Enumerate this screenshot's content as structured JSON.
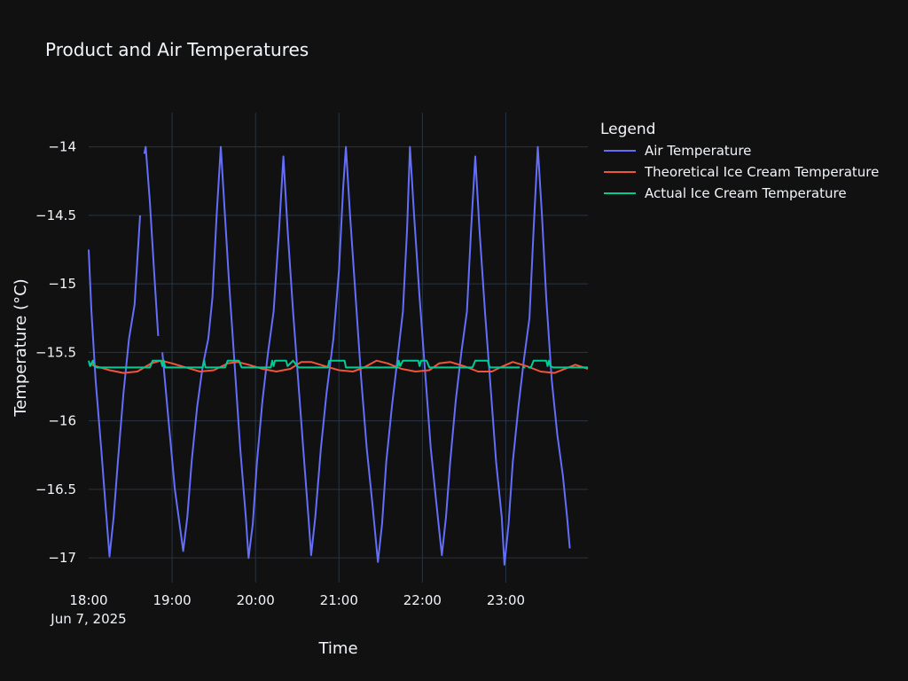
{
  "chart_data": {
    "type": "line",
    "title": "Product and Air Temperatures",
    "xlabel": "Time",
    "ylabel": "Temperature (°C)",
    "legend_title": "Legend",
    "legend_position": "top-right, outside plot",
    "grid": true,
    "date_label": "Jun 7, 2025",
    "xlim": [
      "2025-06-07 18:00",
      "2025-06-07 23:59"
    ],
    "ylim": [
      -17.18,
      -13.75
    ],
    "x_ticks": [
      {
        "value": "2025-06-07 18:00",
        "label": "18:00"
      },
      {
        "value": "2025-06-07 19:00",
        "label": "19:00"
      },
      {
        "value": "2025-06-07 20:00",
        "label": "20:00"
      },
      {
        "value": "2025-06-07 21:00",
        "label": "21:00"
      },
      {
        "value": "2025-06-07 22:00",
        "label": "22:00"
      },
      {
        "value": "2025-06-07 23:00",
        "label": "23:00"
      }
    ],
    "y_ticks": [
      {
        "value": -14,
        "label": "−14"
      },
      {
        "value": -14.5,
        "label": "−14.5"
      },
      {
        "value": -15,
        "label": "−15"
      },
      {
        "value": -15.5,
        "label": "−15.5"
      },
      {
        "value": -16,
        "label": "−16"
      },
      {
        "value": -16.5,
        "label": "−16.5"
      },
      {
        "value": -17,
        "label": "−17"
      }
    ],
    "series": [
      {
        "name": "Air Temperature",
        "color": "#636efa",
        "points": [
          [
            "2025-06-07 18:00",
            -14.75
          ],
          [
            "2025-06-07 18:02",
            -15.2
          ],
          [
            "2025-06-07 18:05",
            -15.7
          ],
          [
            "2025-06-07 18:09",
            -16.2
          ],
          [
            "2025-06-07 18:12",
            -16.6
          ],
          [
            "2025-06-07 18:15",
            -16.99
          ],
          [
            "2025-06-07 18:18",
            -16.7
          ],
          [
            "2025-06-07 18:21",
            -16.3
          ],
          [
            "2025-06-07 18:25",
            -15.8
          ],
          [
            "2025-06-07 18:29",
            -15.4
          ],
          [
            "2025-06-07 18:33",
            -15.15
          ],
          [
            "2025-06-07 18:37",
            -14.5
          ],
          null,
          [
            "2025-06-07 18:40",
            -14.05
          ],
          [
            "2025-06-07 18:41",
            -14.0
          ],
          [
            "2025-06-07 18:44",
            -14.4
          ],
          [
            "2025-06-07 18:47",
            -14.9
          ],
          [
            "2025-06-07 18:50",
            -15.38
          ],
          null,
          [
            "2025-06-07 18:53",
            -15.5
          ],
          [
            "2025-06-07 18:57",
            -15.95
          ],
          [
            "2025-06-07 19:02",
            -16.5
          ],
          [
            "2025-06-07 19:06",
            -16.8
          ],
          [
            "2025-06-07 19:08",
            -16.95
          ],
          [
            "2025-06-07 19:11",
            -16.7
          ],
          [
            "2025-06-07 19:14",
            -16.3
          ],
          [
            "2025-06-07 19:18",
            -15.9
          ],
          [
            "2025-06-07 19:22",
            -15.6
          ],
          [
            "2025-06-07 19:26",
            -15.4
          ],
          [
            "2025-06-07 19:29",
            -15.1
          ],
          [
            "2025-06-07 19:32",
            -14.5
          ],
          [
            "2025-06-07 19:35",
            -14.0
          ],
          [
            "2025-06-07 19:38",
            -14.5
          ],
          [
            "2025-06-07 19:41",
            -15.0
          ],
          [
            "2025-06-07 19:45",
            -15.6
          ],
          [
            "2025-06-07 19:49",
            -16.2
          ],
          [
            "2025-06-07 19:53",
            -16.7
          ],
          [
            "2025-06-07 19:55",
            -17.0
          ],
          [
            "2025-06-07 19:58",
            -16.75
          ],
          [
            "2025-06-07 20:01",
            -16.3
          ],
          [
            "2025-06-07 20:05",
            -15.85
          ],
          [
            "2025-06-07 20:09",
            -15.5
          ],
          [
            "2025-06-07 20:13",
            -15.2
          ],
          [
            "2025-06-07 20:17",
            -14.6
          ],
          [
            "2025-06-07 20:20",
            -14.07
          ],
          [
            "2025-06-07 20:23",
            -14.6
          ],
          [
            "2025-06-07 20:27",
            -15.2
          ],
          [
            "2025-06-07 20:31",
            -15.75
          ],
          [
            "2025-06-07 20:35",
            -16.3
          ],
          [
            "2025-06-07 20:38",
            -16.7
          ],
          [
            "2025-06-07 20:40",
            -16.98
          ],
          [
            "2025-06-07 20:43",
            -16.7
          ],
          [
            "2025-06-07 20:47",
            -16.2
          ],
          [
            "2025-06-07 20:51",
            -15.8
          ],
          [
            "2025-06-07 20:56",
            -15.4
          ],
          [
            "2025-06-07 21:00",
            -14.9
          ],
          [
            "2025-06-07 21:03",
            -14.3
          ],
          [
            "2025-06-07 21:05",
            -14.0
          ],
          [
            "2025-06-07 21:08",
            -14.5
          ],
          [
            "2025-06-07 21:12",
            -15.1
          ],
          [
            "2025-06-07 21:16",
            -15.7
          ],
          [
            "2025-06-07 21:20",
            -16.2
          ],
          [
            "2025-06-07 21:24",
            -16.6
          ],
          [
            "2025-06-07 21:28",
            -17.03
          ],
          [
            "2025-06-07 21:31",
            -16.75
          ],
          [
            "2025-06-07 21:34",
            -16.3
          ],
          [
            "2025-06-07 21:38",
            -15.9
          ],
          [
            "2025-06-07 21:42",
            -15.55
          ],
          [
            "2025-06-07 21:46",
            -15.2
          ],
          [
            "2025-06-07 21:49",
            -14.6
          ],
          [
            "2025-06-07 21:51",
            -14.0
          ],
          [
            "2025-06-07 21:54",
            -14.5
          ],
          [
            "2025-06-07 21:58",
            -15.1
          ],
          [
            "2025-06-07 22:02",
            -15.65
          ],
          [
            "2025-06-07 22:06",
            -16.2
          ],
          [
            "2025-06-07 22:10",
            -16.6
          ],
          [
            "2025-06-07 22:14",
            -16.98
          ],
          [
            "2025-06-07 22:17",
            -16.7
          ],
          [
            "2025-06-07 22:20",
            -16.3
          ],
          [
            "2025-06-07 22:24",
            -15.85
          ],
          [
            "2025-06-07 22:28",
            -15.5
          ],
          [
            "2025-06-07 22:32",
            -15.2
          ],
          [
            "2025-06-07 22:35",
            -14.6
          ],
          [
            "2025-06-07 22:38",
            -14.07
          ],
          [
            "2025-06-07 22:41",
            -14.6
          ],
          [
            "2025-06-07 22:45",
            -15.2
          ],
          [
            "2025-06-07 22:49",
            -15.75
          ],
          [
            "2025-06-07 22:53",
            -16.3
          ],
          [
            "2025-06-07 22:57",
            -16.7
          ],
          [
            "2025-06-07 22:59",
            -17.05
          ],
          [
            "2025-06-07 23:02",
            -16.75
          ],
          [
            "2025-06-07 23:05",
            -16.3
          ],
          [
            "2025-06-07 23:09",
            -15.9
          ],
          [
            "2025-06-07 23:13",
            -15.55
          ],
          [
            "2025-06-07 23:17",
            -15.25
          ],
          [
            "2025-06-07 23:20",
            -14.6
          ],
          [
            "2025-06-07 23:23",
            -14.0
          ],
          [
            "2025-06-07 23:26",
            -14.5
          ],
          [
            "2025-06-07 23:29",
            -15.1
          ],
          [
            "2025-06-07 23:33",
            -15.7
          ],
          [
            "2025-06-07 23:37",
            -16.1
          ],
          [
            "2025-06-07 23:41",
            -16.4
          ],
          [
            "2025-06-07 23:44",
            -16.7
          ],
          [
            "2025-06-07 23:46",
            -16.93
          ]
        ]
      },
      {
        "name": "Theoretical Ice Cream Temperature",
        "color": "#ef553b",
        "points": [
          [
            "2025-06-07 18:00",
            -15.58
          ],
          [
            "2025-06-07 18:05",
            -15.6
          ],
          [
            "2025-06-07 18:15",
            -15.63
          ],
          [
            "2025-06-07 18:25",
            -15.65
          ],
          [
            "2025-06-07 18:35",
            -15.64
          ],
          [
            "2025-06-07 18:45",
            -15.58
          ],
          [
            "2025-06-07 18:52",
            -15.56
          ],
          [
            "2025-06-07 19:00",
            -15.58
          ],
          [
            "2025-06-07 19:10",
            -15.61
          ],
          [
            "2025-06-07 19:20",
            -15.64
          ],
          [
            "2025-06-07 19:30",
            -15.63
          ],
          [
            "2025-06-07 19:40",
            -15.58
          ],
          [
            "2025-06-07 19:47",
            -15.57
          ],
          [
            "2025-06-07 19:55",
            -15.59
          ],
          [
            "2025-06-07 20:05",
            -15.62
          ],
          [
            "2025-06-07 20:15",
            -15.64
          ],
          [
            "2025-06-07 20:25",
            -15.62
          ],
          [
            "2025-06-07 20:33",
            -15.57
          ],
          [
            "2025-06-07 20:40",
            -15.57
          ],
          [
            "2025-06-07 20:50",
            -15.6
          ],
          [
            "2025-06-07 21:00",
            -15.63
          ],
          [
            "2025-06-07 21:10",
            -15.64
          ],
          [
            "2025-06-07 21:18",
            -15.61
          ],
          [
            "2025-06-07 21:27",
            -15.56
          ],
          [
            "2025-06-07 21:35",
            -15.58
          ],
          [
            "2025-06-07 21:45",
            -15.62
          ],
          [
            "2025-06-07 21:55",
            -15.64
          ],
          [
            "2025-06-07 22:05",
            -15.63
          ],
          [
            "2025-06-07 22:12",
            -15.58
          ],
          [
            "2025-06-07 22:20",
            -15.57
          ],
          [
            "2025-06-07 22:30",
            -15.6
          ],
          [
            "2025-06-07 22:40",
            -15.64
          ],
          [
            "2025-06-07 22:50",
            -15.64
          ],
          [
            "2025-06-07 22:58",
            -15.6
          ],
          [
            "2025-06-07 23:05",
            -15.57
          ],
          [
            "2025-06-07 23:15",
            -15.6
          ],
          [
            "2025-06-07 23:25",
            -15.64
          ],
          [
            "2025-06-07 23:35",
            -15.65
          ],
          [
            "2025-06-07 23:45",
            -15.61
          ],
          [
            "2025-06-07 23:50",
            -15.59
          ],
          [
            "2025-06-07 23:59",
            -15.62
          ]
        ]
      },
      {
        "name": "Actual Ice Cream Temperature",
        "color": "#00cc96",
        "points": [
          [
            "2025-06-07 18:00",
            -15.56
          ],
          [
            "2025-06-07 18:01",
            -15.6
          ],
          [
            "2025-06-07 18:03",
            -15.56
          ],
          [
            "2025-06-07 18:04",
            -15.6
          ],
          [
            "2025-06-07 18:06",
            -15.61
          ],
          [
            "2025-06-07 18:44",
            -15.61
          ],
          [
            "2025-06-07 18:46",
            -15.56
          ],
          [
            "2025-06-07 18:52",
            -15.56
          ],
          [
            "2025-06-07 18:53",
            -15.6
          ],
          [
            "2025-06-07 18:54",
            -15.56
          ],
          [
            "2025-06-07 18:55",
            -15.61
          ],
          [
            "2025-06-07 19:22",
            -15.61
          ],
          [
            "2025-06-07 19:23",
            -15.56
          ],
          [
            "2025-06-07 19:24",
            -15.61
          ],
          [
            "2025-06-07 19:38",
            -15.61
          ],
          [
            "2025-06-07 19:40",
            -15.56
          ],
          [
            "2025-06-07 19:48",
            -15.56
          ],
          [
            "2025-06-07 19:50",
            -15.61
          ],
          [
            "2025-06-07 20:11",
            -15.61
          ],
          [
            "2025-06-07 20:12",
            -15.56
          ],
          [
            "2025-06-07 20:13",
            -15.6
          ],
          [
            "2025-06-07 20:14",
            -15.56
          ],
          [
            "2025-06-07 20:22",
            -15.56
          ],
          [
            "2025-06-07 20:23",
            -15.6
          ],
          [
            "2025-06-07 20:27",
            -15.56
          ],
          [
            "2025-06-07 20:30",
            -15.6
          ],
          [
            "2025-06-07 20:31",
            -15.61
          ],
          [
            "2025-06-07 20:52",
            -15.61
          ],
          [
            "2025-06-07 20:53",
            -15.56
          ],
          [
            "2025-06-07 21:04",
            -15.56
          ],
          [
            "2025-06-07 21:05",
            -15.61
          ],
          [
            "2025-06-07 21:42",
            -15.61
          ],
          [
            "2025-06-07 21:43",
            -15.56
          ],
          [
            "2025-06-07 21:44",
            -15.6
          ],
          [
            "2025-06-07 21:46",
            -15.56
          ],
          [
            "2025-06-07 21:57",
            -15.56
          ],
          [
            "2025-06-07 21:58",
            -15.6
          ],
          [
            "2025-06-07 21:59",
            -15.56
          ],
          [
            "2025-06-07 22:03",
            -15.56
          ],
          [
            "2025-06-07 22:05",
            -15.61
          ],
          [
            "2025-06-07 22:36",
            -15.61
          ],
          [
            "2025-06-07 22:38",
            -15.56
          ],
          [
            "2025-06-07 22:47",
            -15.56
          ],
          [
            "2025-06-07 22:48",
            -15.6
          ],
          [
            "2025-06-07 22:49",
            -15.61
          ],
          [
            "2025-06-07 23:10",
            -15.61
          ],
          null,
          [
            "2025-06-07 23:12",
            -15.61
          ],
          [
            "2025-06-07 23:14",
            -15.61
          ],
          null,
          [
            "2025-06-07 23:16",
            -15.61
          ],
          [
            "2025-06-07 23:18",
            -15.61
          ],
          [
            "2025-06-07 23:20",
            -15.56
          ],
          [
            "2025-06-07 23:29",
            -15.56
          ],
          [
            "2025-06-07 23:30",
            -15.6
          ],
          [
            "2025-06-07 23:31",
            -15.56
          ],
          [
            "2025-06-07 23:32",
            -15.6
          ],
          [
            "2025-06-07 23:34",
            -15.61
          ],
          [
            "2025-06-07 23:59",
            -15.61
          ]
        ]
      }
    ]
  }
}
